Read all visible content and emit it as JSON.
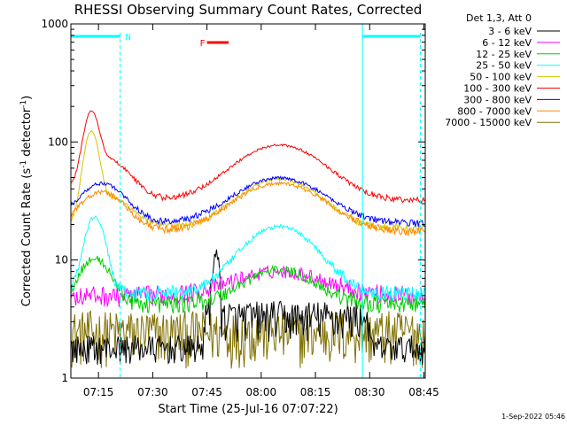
{
  "chart_data": {
    "type": "line",
    "title": "RHESSI Observing Summary Count Rates, Corrected",
    "xlabel": "Start Time (25-Jul-16 07:07:22)",
    "ylabel_main": "Corrected Count Rate (s",
    "ylabel_sup1": "-1",
    "ylabel_mid": " detector",
    "ylabel_sup2": "-1",
    "ylabel_end": ")",
    "y_scale": "log",
    "ylim": [
      1,
      1000
    ],
    "xlim_minutes": [
      7.1,
      8.75
    ],
    "x_tick_labels": [
      "07:15",
      "07:30",
      "07:45",
      "08:00",
      "08:15",
      "08:30",
      "08:45"
    ],
    "x_tick_minutes": [
      15,
      30,
      45,
      60,
      75,
      90,
      105
    ],
    "y_tick_labels": [
      "1",
      "10",
      "100",
      "1000"
    ],
    "y_tick_values": [
      1,
      10,
      100,
      1000
    ],
    "legend_title": "Det 1,3, Att 0",
    "series": [
      {
        "name": "3 - 6 keV",
        "color": "#000000"
      },
      {
        "name": "6 - 12 keV",
        "color": "#ff00ff"
      },
      {
        "name": "12 - 25 keV",
        "color": "#00cc00"
      },
      {
        "name": "25 - 50 keV",
        "color": "#00ffff"
      },
      {
        "name": "50 - 100 keV",
        "color": "#d4c400"
      },
      {
        "name": "100 - 300 keV",
        "color": "#ff0000"
      },
      {
        "name": "300 - 800 keV",
        "color": "#0000ff"
      },
      {
        "name": "800 - 7000 keV",
        "color": "#ff8800"
      },
      {
        "name": "7000 - 15000 keV",
        "color": "#807000"
      }
    ],
    "flags": {
      "night_label": "N",
      "flare_label": "F"
    },
    "timestamp": "1-Sep-2022 05:46"
  }
}
